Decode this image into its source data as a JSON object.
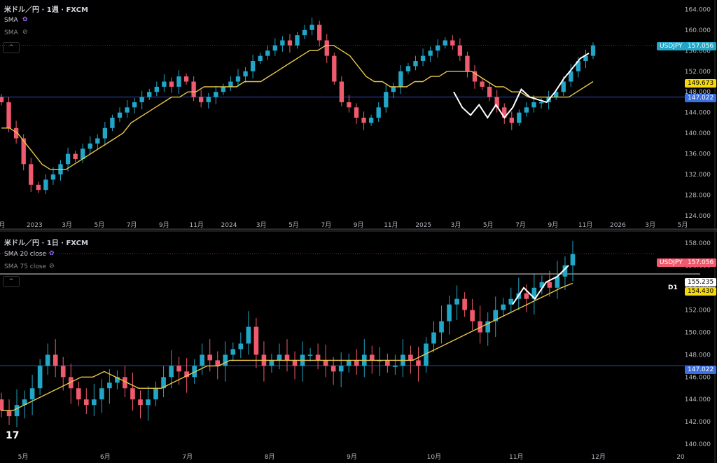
{
  "colors": {
    "bg": "#000000",
    "up": "#22a6c7",
    "down": "#f05a6e",
    "sma": "#e8c74a",
    "zigzag": "#ffffff",
    "hline": "#3b5bdb",
    "grid": "#2a2a2a",
    "text": "#b2b5be",
    "usd_badge": "#22a6c7",
    "usd_badge_red": "#f05a6e",
    "sma_badge": "#f5d90a",
    "hline_badge": "#3b6fe0"
  },
  "top": {
    "title": "米ドル／円 · 1週 · FXCM",
    "ind1": "SMA",
    "ind2": "SMA",
    "indicator_icons": [
      "settings-icon",
      "hidden-eye-icon"
    ],
    "collapse": "^",
    "badges": {
      "symbol": "USDJPY",
      "price": "157.056",
      "sma": "149.673",
      "hline": "147.022"
    }
  },
  "bottom": {
    "title": "米ドル／円 · 1日 · FXCM",
    "ind1": "SMA 20 close",
    "ind2": "SMA 75 close",
    "indicator_icons": [
      "settings-icon",
      "hidden-eye-icon"
    ],
    "collapse": "^",
    "badges": {
      "symbol": "USDJPY",
      "price": "157.056",
      "line": "155.235",
      "sma": "154.430",
      "hline": "147.022",
      "line_label": "D1"
    }
  },
  "chart_data": [
    {
      "type": "candlestick",
      "title": "米ドル／円 · 1週 · FXCM",
      "ylim": [
        124,
        165
      ],
      "y_ticks": [
        "164.000",
        "160.000",
        "156.000",
        "152.000",
        "148.000",
        "144.000",
        "140.000",
        "136.000",
        "132.000",
        "128.000",
        "124.000"
      ],
      "x_ticks": [
        "月",
        "2023",
        "3月",
        "5月",
        "7月",
        "9月",
        "11月",
        "2024",
        "3月",
        "5月",
        "7月",
        "9月",
        "11月",
        "2025",
        "3月",
        "5月",
        "7月",
        "9月",
        "11月",
        "2026",
        "3月",
        "5月"
      ],
      "closes": [
        146,
        141,
        139,
        134,
        130,
        129,
        131,
        132,
        134,
        136,
        135,
        137,
        138,
        139,
        141,
        143,
        144,
        145,
        146,
        147,
        148,
        149,
        150,
        149,
        151,
        150,
        147,
        146,
        147,
        148,
        149,
        150,
        151,
        152,
        154,
        155,
        156,
        157,
        158,
        157,
        159,
        160,
        161,
        158,
        155,
        150,
        146,
        145,
        143,
        142,
        143,
        145,
        148,
        149,
        152,
        153,
        154,
        155,
        156,
        157,
        158,
        157,
        155,
        152,
        150,
        149,
        147,
        145,
        143,
        142,
        144,
        145,
        146,
        146,
        147,
        148,
        150,
        152,
        154,
        155,
        157
      ],
      "sma_closes": [
        141,
        141,
        140,
        138,
        136,
        134,
        133,
        133,
        133,
        134,
        135,
        136,
        137,
        138,
        139,
        140,
        142,
        143,
        144,
        145,
        146,
        147,
        147,
        148,
        148,
        149,
        149,
        149,
        149,
        149,
        150,
        150,
        150,
        151,
        152,
        153,
        154,
        155,
        156,
        156,
        157,
        157,
        156,
        155,
        153,
        151,
        150,
        150,
        149,
        149,
        149,
        150,
        150,
        151,
        151,
        152,
        152,
        152,
        152,
        151,
        150,
        149,
        149,
        148,
        148,
        147,
        147,
        147,
        147,
        147,
        147,
        148,
        149,
        150
      ],
      "zigzag": [
        [
          151.5,
          148.0
        ],
        [
          153.5,
          145.0
        ],
        [
          155.5,
          143.5
        ],
        [
          157.5,
          145.5
        ],
        [
          159.5,
          143.0
        ],
        [
          161.5,
          145.5
        ],
        [
          163.5,
          143.0
        ],
        [
          165.5,
          145.0
        ],
        [
          167.5,
          148.5
        ],
        [
          169.5,
          147.0
        ],
        [
          171.5,
          146.5
        ],
        [
          173.5,
          146.0
        ],
        [
          175.5,
          148.0
        ],
        [
          177.5,
          150.5
        ],
        [
          179.5,
          152.5
        ],
        [
          181.5,
          154.5
        ],
        [
          183.5,
          155.5
        ]
      ],
      "hline": 147.022,
      "last_price": 157.056,
      "sma_last": 149.673
    },
    {
      "type": "candlestick",
      "title": "米ドル／円 · 1日 · FXCM",
      "ylim": [
        140,
        158.5
      ],
      "y_ticks": [
        "158.000",
        "156.000",
        "154.000",
        "152.000",
        "150.000",
        "148.000",
        "146.000",
        "144.000",
        "142.000",
        "140.000"
      ],
      "x_ticks": [
        "5月",
        "6月",
        "7月",
        "8月",
        "9月",
        "10月",
        "11月",
        "12月",
        "20"
      ],
      "closes": [
        143,
        142.5,
        143.5,
        144,
        145,
        147,
        148,
        147,
        146,
        145,
        144,
        143.5,
        144,
        145,
        145.5,
        146,
        145,
        144,
        143.5,
        144,
        145,
        146,
        147,
        146.5,
        146,
        147,
        148,
        147.5,
        147,
        148,
        148.5,
        149,
        150.5,
        148,
        147,
        147.5,
        148,
        147.5,
        147,
        148,
        148,
        147.5,
        147,
        146.5,
        147,
        147.5,
        147,
        148,
        147.5,
        147.5,
        147,
        147,
        148,
        147.5,
        147,
        149,
        150,
        151,
        152.5,
        153,
        152,
        151,
        150,
        151,
        152,
        152.5,
        153,
        153.5,
        153,
        154,
        154.5,
        154,
        155,
        156,
        157
      ],
      "sma_closes": [
        143,
        143,
        143.5,
        144,
        144.5,
        145,
        145.5,
        146,
        146,
        146.5,
        146,
        145.5,
        145,
        145,
        145,
        145.5,
        146,
        146.5,
        147,
        147,
        147.5,
        147.5,
        147.5,
        147.5,
        147.5,
        147.5,
        147.5,
        147.5,
        147.5,
        147.5,
        147.5,
        147.5,
        147.5,
        147.5,
        147.5,
        147.5,
        147.5,
        148,
        148.5,
        149,
        149.5,
        150,
        150.5,
        151,
        151.5,
        152,
        152.5,
        153,
        153.5,
        154,
        154.4
      ],
      "zigzag": [
        [
          150.0,
          152.5
        ],
        [
          151.5,
          154
        ],
        [
          153,
          153
        ],
        [
          154.5,
          154.5
        ],
        [
          156,
          155
        ],
        [
          157,
          156
        ]
      ],
      "hline": 147.022,
      "last_price": 157.056,
      "marked_line": 155.235,
      "sma_last": 154.43
    }
  ]
}
